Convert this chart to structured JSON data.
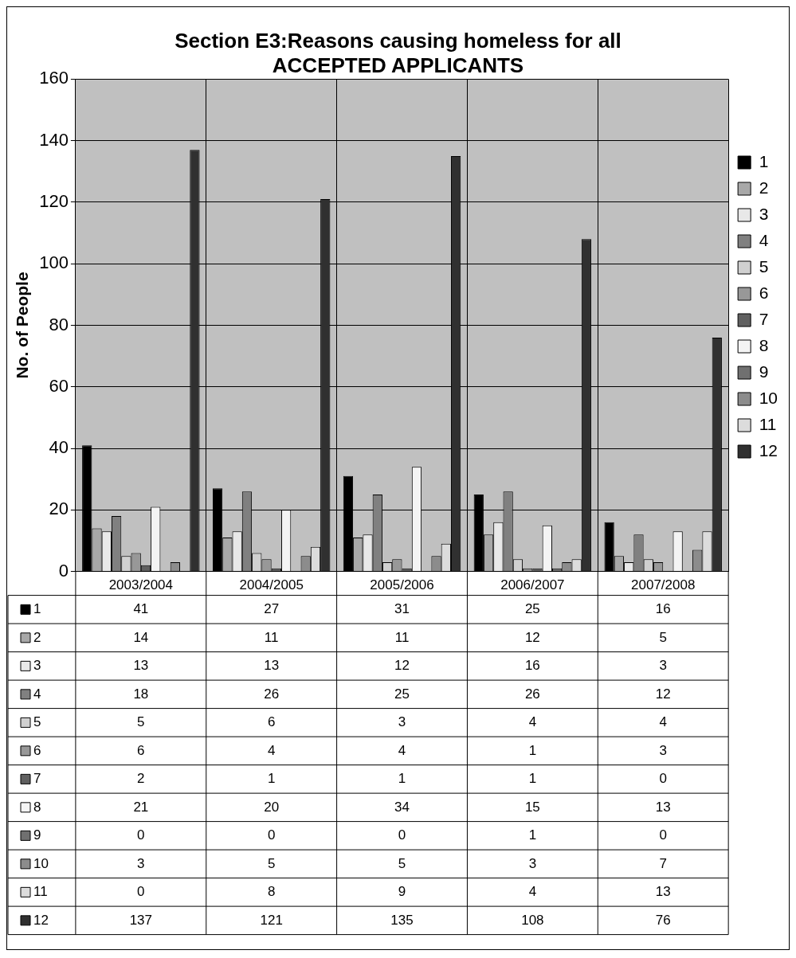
{
  "chart_data": {
    "type": "bar",
    "title": "Section E3:Reasons causing homeless for all ACCEPTED APPLICANTS",
    "ylabel": "No. of People",
    "categories": [
      "2003/2004",
      "2004/2005",
      "2005/2006",
      "2006/2007",
      "2007/2008"
    ],
    "series": [
      {
        "name": "1",
        "color": "#000000",
        "values": [
          41,
          27,
          31,
          25,
          16
        ]
      },
      {
        "name": "2",
        "color": "#a8a8a8",
        "values": [
          14,
          11,
          11,
          12,
          5
        ]
      },
      {
        "name": "3",
        "color": "#e8e8e8",
        "values": [
          13,
          13,
          12,
          16,
          3
        ]
      },
      {
        "name": "4",
        "color": "#808080",
        "values": [
          18,
          26,
          25,
          26,
          12
        ]
      },
      {
        "name": "5",
        "color": "#d0d0d0",
        "values": [
          5,
          6,
          3,
          4,
          4
        ]
      },
      {
        "name": "6",
        "color": "#989898",
        "values": [
          6,
          4,
          4,
          1,
          3
        ]
      },
      {
        "name": "7",
        "color": "#606060",
        "values": [
          2,
          1,
          1,
          1,
          0
        ]
      },
      {
        "name": "8",
        "color": "#f4f4f4",
        "values": [
          21,
          20,
          34,
          15,
          13
        ]
      },
      {
        "name": "9",
        "color": "#707070",
        "values": [
          0,
          0,
          0,
          1,
          0
        ]
      },
      {
        "name": "10",
        "color": "#8c8c8c",
        "values": [
          3,
          5,
          5,
          3,
          7
        ]
      },
      {
        "name": "11",
        "color": "#dcdcdc",
        "values": [
          0,
          8,
          9,
          4,
          13
        ]
      },
      {
        "name": "12",
        "color": "#303030",
        "values": [
          137,
          121,
          135,
          108,
          76
        ]
      }
    ],
    "ylim": [
      0,
      160
    ],
    "yticks": [
      0,
      20,
      40,
      60,
      80,
      100,
      120,
      140,
      160
    ],
    "grid": true,
    "legend": "right",
    "data_labels": true
  }
}
